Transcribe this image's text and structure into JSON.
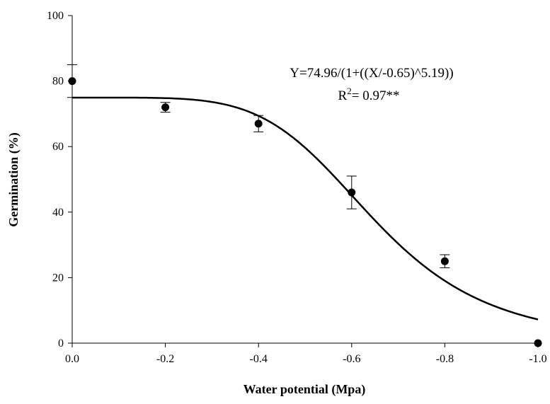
{
  "chart_data": {
    "type": "scatter",
    "xlabel": "Water potential (Mpa)",
    "ylabel": "Germination (%)",
    "xlim": [
      0.0,
      -1.0
    ],
    "ylim": [
      0,
      100
    ],
    "x_ticks": [
      "0.0",
      "-0.2",
      "-0.4",
      "-0.6",
      "-0.8",
      "-1.0"
    ],
    "x_tick_values": [
      0.0,
      -0.2,
      -0.4,
      -0.6,
      -0.8,
      -1.0
    ],
    "y_ticks": [
      "0",
      "20",
      "40",
      "60",
      "80",
      "100"
    ],
    "y_tick_values": [
      0,
      20,
      40,
      60,
      80,
      100
    ],
    "grid": false,
    "series": [
      {
        "x": [
          0.0,
          -0.2,
          -0.4,
          -0.6,
          -0.8,
          -1.0
        ],
        "y": [
          80,
          72,
          67,
          46,
          25,
          0
        ],
        "error": [
          5,
          1.5,
          2.5,
          5,
          2,
          0
        ]
      }
    ],
    "fit": {
      "a": 74.96,
      "x0": -0.65,
      "b": 5.19
    },
    "annotation": {
      "equation": "Y=74.96/(1+((X/-0.65)^5.19))",
      "r2_prefix": "R",
      "r2_sup": "2",
      "r2_value": "= 0.97**"
    }
  }
}
